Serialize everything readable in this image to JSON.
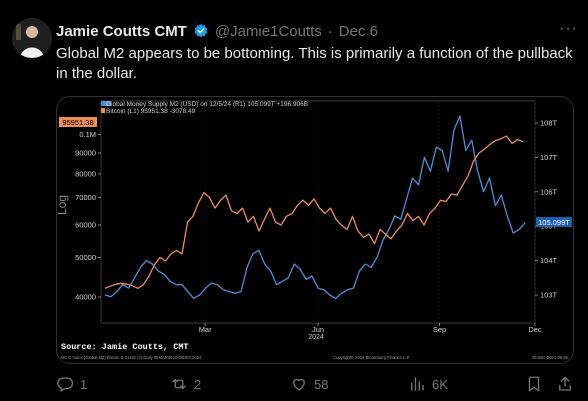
{
  "tweet": {
    "author_name": "Jamie Coutts CMT",
    "handle": "@Jamie1Coutts",
    "separator": "·",
    "date": "Dec 6",
    "text": "Global M2 appears to be bottoming. This is primarily a function of the pullback in the dollar."
  },
  "actions": {
    "replies": "1",
    "reposts": "2",
    "likes": "58",
    "views": "6K"
  },
  "colors": {
    "accent": "#1d9bf0",
    "m2_line": "#4d8fd6",
    "btc_line": "#ee8c5a"
  },
  "chart_data": {
    "type": "line",
    "legend": [
      "Global Money Supply M2 (USD) on 12/5/24 (R1) 105.099T +196.906B",
      "Bitcoin (L1)    95951.38  -3078.49"
    ],
    "left_axis": {
      "label": "Log",
      "ticks": [
        "0.1M",
        "90000",
        "80000",
        "70000",
        "60000",
        "50000",
        "40000"
      ],
      "current_value_label": "95951.38"
    },
    "right_axis": {
      "ticks": [
        "108T",
        "107T",
        "106T",
        "105T",
        "104T",
        "103T"
      ],
      "current_value_label": "105.099T"
    },
    "x_axis": {
      "ticks": [
        "Mar",
        "Jun",
        "Sep",
        "Dec"
      ],
      "year_label": "2024"
    },
    "source_text": "Source: Jamie Coutts, CMT",
    "footer_left": "M2 G Index (Global M2) Bitcoin & GLM2 (2)  Daily 09MAR2022-06DEC2024",
    "footer_mid": "Copyright© 2024 Bloomberg Finance L.P.",
    "footer_right": "06-Dec-2024 09:36:",
    "series": [
      {
        "name": "Global Money Supply M2 (USD)",
        "axis": "right",
        "unit": "T",
        "values": [
          103.0,
          102.95,
          103.1,
          103.3,
          103.2,
          103.5,
          103.8,
          104.0,
          103.9,
          103.7,
          103.6,
          103.4,
          103.3,
          103.3,
          103.1,
          102.9,
          103.0,
          103.2,
          103.35,
          103.3,
          103.15,
          103.1,
          103.05,
          103.1,
          103.8,
          104.2,
          104.3,
          103.9,
          103.7,
          103.3,
          103.4,
          103.5,
          103.9,
          103.75,
          103.45,
          103.55,
          103.2,
          103.15,
          103.0,
          102.9,
          103.05,
          103.15,
          103.2,
          103.7,
          103.9,
          103.8,
          104.1,
          104.6,
          104.9,
          105.3,
          105.2,
          105.8,
          106.4,
          106.2,
          107.0,
          106.6,
          107.3,
          107.2,
          106.6,
          107.8,
          108.2,
          107.2,
          107.5,
          106.6,
          106.0,
          106.4,
          105.6,
          105.9,
          105.3,
          104.8,
          104.9,
          105.1
        ]
      },
      {
        "name": "Bitcoin",
        "axis": "left",
        "unit": "USD",
        "values": [
          42000,
          42500,
          43000,
          43200,
          43000,
          42600,
          42000,
          42900,
          45000,
          48000,
          50000,
          49000,
          51000,
          52000,
          51000,
          61000,
          63000,
          68000,
          72000,
          70000,
          66000,
          69000,
          71000,
          65000,
          64000,
          66000,
          61000,
          63000,
          58000,
          62000,
          66000,
          61000,
          60000,
          63000,
          64000,
          67000,
          69000,
          67000,
          69500,
          66000,
          64000,
          66000,
          62000,
          60000,
          58500,
          63000,
          58000,
          56000,
          57000,
          54000,
          58500,
          57000,
          55500,
          58000,
          60000,
          64000,
          61500,
          63000,
          60000,
          64000,
          66000,
          69000,
          68500,
          71500,
          71000,
          75000,
          79000,
          86000,
          90000,
          92000,
          94500,
          96500,
          97500,
          99000,
          95000,
          97000,
          95951
        ]
      }
    ]
  }
}
